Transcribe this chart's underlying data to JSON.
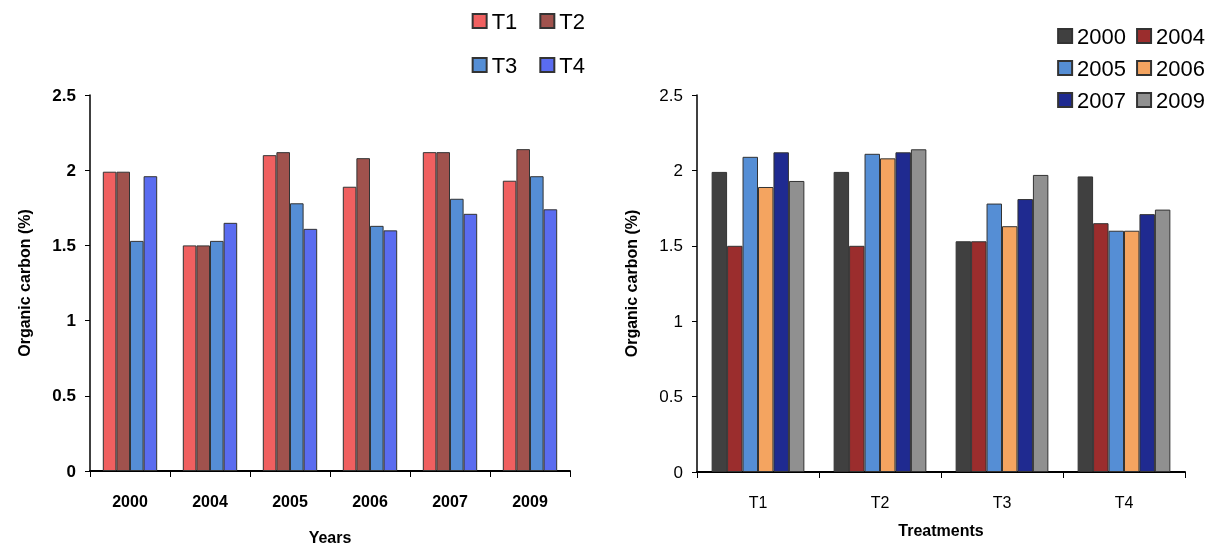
{
  "chart_data": [
    {
      "type": "bar",
      "xlabel": "Years",
      "ylabel": "Organic carbon (%)",
      "categories": [
        "2000",
        "2004",
        "2005",
        "2006",
        "2007",
        "2009"
      ],
      "ylim": [
        0,
        2.5
      ],
      "yticks": [
        0,
        0.5,
        1,
        1.5,
        2,
        2.5
      ],
      "grid": false,
      "legend": "top right",
      "series": [
        {
          "name": "T1",
          "color": "#f06060",
          "values": [
            1.99,
            1.5,
            2.1,
            1.89,
            2.12,
            1.93
          ]
        },
        {
          "name": "T2",
          "color": "#a0524d",
          "values": [
            1.99,
            1.5,
            2.12,
            2.08,
            2.12,
            2.14
          ]
        },
        {
          "name": "T3",
          "color": "#558ed5",
          "values": [
            1.53,
            1.53,
            1.78,
            1.63,
            1.81,
            1.96
          ]
        },
        {
          "name": "T4",
          "color": "#5a6cf0",
          "values": [
            1.96,
            1.65,
            1.61,
            1.6,
            1.71,
            1.74
          ]
        }
      ]
    },
    {
      "type": "bar",
      "xlabel": "Treatments",
      "ylabel": "Organic carbon (%)",
      "categories": [
        "T1",
        "T2",
        "T3",
        "T4"
      ],
      "ylim": [
        0,
        2.5
      ],
      "yticks": [
        0,
        0.5,
        1,
        1.5,
        2,
        2.5
      ],
      "grid": false,
      "legend": "top right",
      "series": [
        {
          "name": "2000",
          "color": "#404040",
          "values": [
            1.99,
            1.99,
            1.53,
            1.96
          ]
        },
        {
          "name": "2004",
          "color": "#9b2d2d",
          "values": [
            1.5,
            1.5,
            1.53,
            1.65
          ]
        },
        {
          "name": "2005",
          "color": "#558ed5",
          "values": [
            2.09,
            2.11,
            1.78,
            1.6
          ]
        },
        {
          "name": "2006",
          "color": "#f4a460",
          "values": [
            1.89,
            2.08,
            1.63,
            1.6
          ]
        },
        {
          "name": "2007",
          "color": "#1f2a90",
          "values": [
            2.12,
            2.12,
            1.81,
            1.71
          ]
        },
        {
          "name": "2009",
          "color": "#909090",
          "values": [
            1.93,
            2.14,
            1.97,
            1.74
          ]
        }
      ]
    }
  ]
}
